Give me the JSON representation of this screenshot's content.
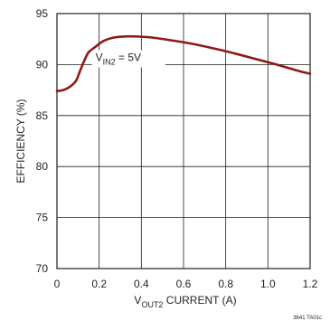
{
  "chart_data": {
    "type": "line",
    "xlabel": "V_OUT2 CURRENT (A)",
    "xlabel_parts": {
      "prefix": "V",
      "subscript": "OUT2",
      "suffix": " CURRENT (A)"
    },
    "ylabel": "EFFICIENCY (%)",
    "xlim": [
      0,
      1.2
    ],
    "ylim": [
      70,
      95
    ],
    "x_ticks": [
      "0",
      "0.2",
      "0.4",
      "0.6",
      "0.8",
      "1.0",
      "1.2"
    ],
    "x_tick_values": [
      0,
      0.2,
      0.4,
      0.6,
      0.8,
      1.0,
      1.2
    ],
    "y_ticks": [
      "95",
      "90",
      "85",
      "80",
      "75",
      "70"
    ],
    "y_tick_values": [
      95,
      90,
      85,
      80,
      75,
      70
    ],
    "grid": true,
    "series": [
      {
        "name": "V_IN2 = 5V",
        "color": "#8b1a1a",
        "x": [
          0,
          0.03,
          0.06,
          0.09,
          0.11,
          0.13,
          0.15,
          0.18,
          0.22,
          0.27,
          0.32,
          0.38,
          0.45,
          0.55,
          0.65,
          0.75,
          0.85,
          0.95,
          1.05,
          1.15,
          1.2
        ],
        "y": [
          87.4,
          87.5,
          87.8,
          88.4,
          89.4,
          90.4,
          91.2,
          91.7,
          92.3,
          92.65,
          92.75,
          92.75,
          92.65,
          92.35,
          92.0,
          91.55,
          91.05,
          90.5,
          89.95,
          89.35,
          89.1
        ]
      }
    ],
    "annotations": [
      {
        "label_parts": {
          "prefix": "V",
          "subscript": "IN2",
          "suffix": " = 5V"
        },
        "x": 0.38,
        "y": 90.7
      }
    ],
    "figure_ref": "3641 TA01c"
  }
}
